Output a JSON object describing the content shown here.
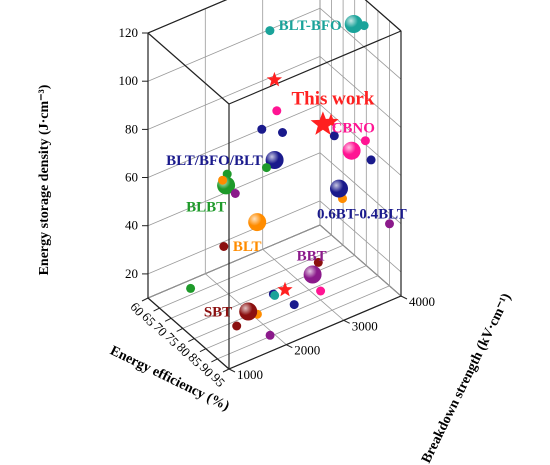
{
  "chart_data": {
    "type": "scatter3d",
    "axes": {
      "x": {
        "label": "Energy efficiency (%)",
        "ticks": [
          "60",
          "65",
          "70",
          "75",
          "80",
          "85",
          "90",
          "95"
        ],
        "range": [
          60,
          95
        ]
      },
      "y": {
        "label": "Breakdown strength (kV·cm⁻¹)",
        "ticks": [
          "1000",
          "2000",
          "3000",
          "4000"
        ],
        "range": [
          1000,
          4000
        ]
      },
      "z": {
        "label": "Energy storage density (J·cm⁻³)",
        "ticks": [
          "20",
          "40",
          "60",
          "80",
          "100",
          "120"
        ],
        "range": [
          10,
          120
        ]
      }
    },
    "grid": true,
    "series": [
      {
        "name": "BLT-BFO",
        "color": "#1aa39a",
        "points": [
          {
            "x": 82,
            "y": 3700,
            "z": 115,
            "major": true
          },
          {
            "x": 78,
            "y": 2400,
            "z": 122
          },
          {
            "x": 84,
            "y": 3800,
            "z": 115
          },
          {
            "x": 85,
            "y": 2200,
            "z": 20
          }
        ]
      },
      {
        "name": "This work",
        "color": "#ff2020",
        "points": [
          {
            "x": 91,
            "y": 2800,
            "z": 90,
            "major": true
          },
          {
            "x": 92,
            "y": 2900,
            "z": 91
          },
          {
            "x": 75,
            "y": 2600,
            "z": 97
          },
          {
            "x": 87,
            "y": 2300,
            "z": 23
          }
        ]
      },
      {
        "name": "CBNO",
        "color": "#ff1493",
        "points": [
          {
            "x": 91,
            "y": 3300,
            "z": 74,
            "major": true
          },
          {
            "x": 76,
            "y": 2600,
            "z": 85
          },
          {
            "x": 92,
            "y": 3500,
            "z": 77
          },
          {
            "x": 90,
            "y": 2800,
            "z": 20
          }
        ]
      },
      {
        "name": "BLT/BFO/BLT",
        "color": "#1a1a8c",
        "points": [
          {
            "x": 80,
            "y": 2400,
            "z": 70,
            "major": true
          },
          {
            "x": 72,
            "y": 2500,
            "z": 75
          },
          {
            "x": 76,
            "y": 2700,
            "z": 75
          },
          {
            "x": 86,
            "y": 3200,
            "z": 77
          },
          {
            "x": 92,
            "y": 3600,
            "z": 68
          },
          {
            "x": 82,
            "y": 2300,
            "z": 17
          },
          {
            "x": 86,
            "y": 2500,
            "z": 14
          }
        ]
      },
      {
        "name": "0.6BT-0.4BLT",
        "color": "#1a1a8c",
        "points": [
          {
            "x": 93,
            "y": 3000,
            "z": 63,
            "major": true
          }
        ]
      },
      {
        "name": "BLBT",
        "color": "#1e9a2a",
        "points": [
          {
            "x": 64,
            "y": 2200,
            "z": 48,
            "major": true
          },
          {
            "x": 62,
            "y": 2300,
            "z": 50
          },
          {
            "x": 79,
            "y": 2300,
            "z": 67
          },
          {
            "x": 66,
            "y": 1500,
            "z": 14
          }
        ]
      },
      {
        "name": "BLT",
        "color": "#ff8c00",
        "points": [
          {
            "x": 75,
            "y": 2300,
            "z": 41,
            "major": true
          },
          {
            "x": 65,
            "y": 2100,
            "z": 52
          },
          {
            "x": 92,
            "y": 3100,
            "z": 57
          },
          {
            "x": 80,
            "y": 2100,
            "z": 9
          }
        ]
      },
      {
        "name": "BBT",
        "color": "#8b1a8b",
        "points": [
          {
            "x": 89,
            "y": 2700,
            "z": 27,
            "major": true
          },
          {
            "x": 68,
            "y": 2200,
            "z": 48
          },
          {
            "x": 95,
            "y": 3800,
            "z": 42
          },
          {
            "x": 88,
            "y": 2000,
            "z": 8
          }
        ]
      },
      {
        "name": "SBT",
        "color": "#8b1010",
        "points": [
          {
            "x": 81,
            "y": 1900,
            "z": 13,
            "major": true
          },
          {
            "x": 68,
            "y": 2000,
            "z": 28
          },
          {
            "x": 89,
            "y": 2800,
            "z": 31
          },
          {
            "x": 81,
            "y": 1700,
            "z": 9
          }
        ]
      }
    ]
  }
}
